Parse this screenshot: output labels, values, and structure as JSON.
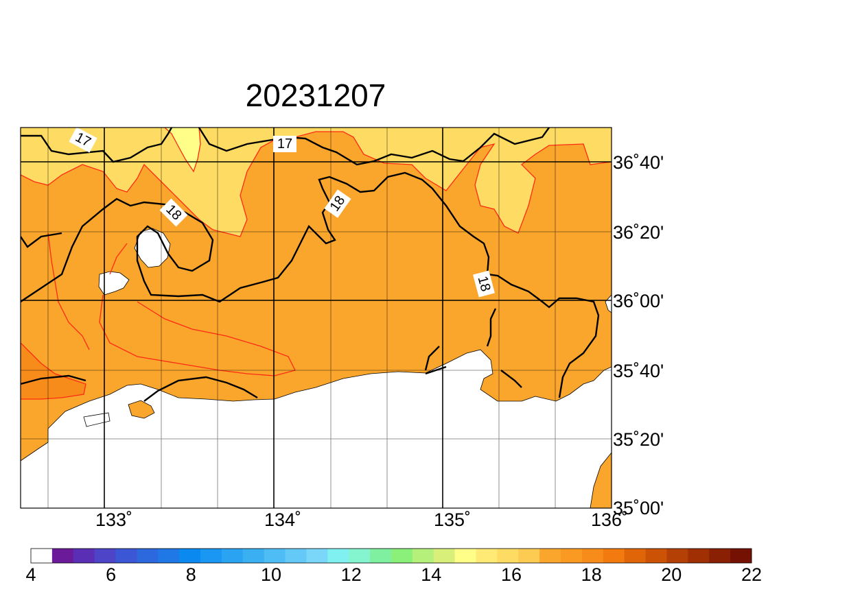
{
  "map": {
    "title": "20231207",
    "lon_ticks": [
      "133˚",
      "134˚",
      "135˚",
      "136˚"
    ],
    "lat_ticks": [
      "36˚40'",
      "36˚20'",
      "36˚00'",
      "35˚40'",
      "35˚20'",
      "35˚00'"
    ],
    "contour_labels": [
      "17",
      "17",
      "18",
      "18",
      "18"
    ],
    "colors": {
      "sst_17": "#fedb62",
      "sst_18": "#faa52b",
      "sst_19": "#f88c1a",
      "sst_16": "#fefe88",
      "land": "#ffffff",
      "contour_major": "#000000",
      "contour_minor": "#ff2a14"
    }
  },
  "colorbar": {
    "tick_labels": [
      "4",
      "6",
      "8",
      "10",
      "12",
      "14",
      "16",
      "18",
      "20",
      "22"
    ],
    "colors": [
      "#ffffff",
      "#6b1a99",
      "#5b2fb5",
      "#4d44c8",
      "#3b57d6",
      "#2c68de",
      "#1f78e6",
      "#0a8af0",
      "#1a97f2",
      "#2aa3f2",
      "#3aaff2",
      "#4fbdf5",
      "#65c9f7",
      "#7ad7fa",
      "#80f0f0",
      "#85f5d0",
      "#7ff0a0",
      "#8af07a",
      "#b4f07a",
      "#d8f07a",
      "#fefe88",
      "#feea74",
      "#fedb62",
      "#fdca52",
      "#faa52b",
      "#fa9a22",
      "#f88c1a",
      "#f27a0f",
      "#e06408",
      "#cc5206",
      "#b54005",
      "#a03004",
      "#8a2003",
      "#751102"
    ]
  }
}
